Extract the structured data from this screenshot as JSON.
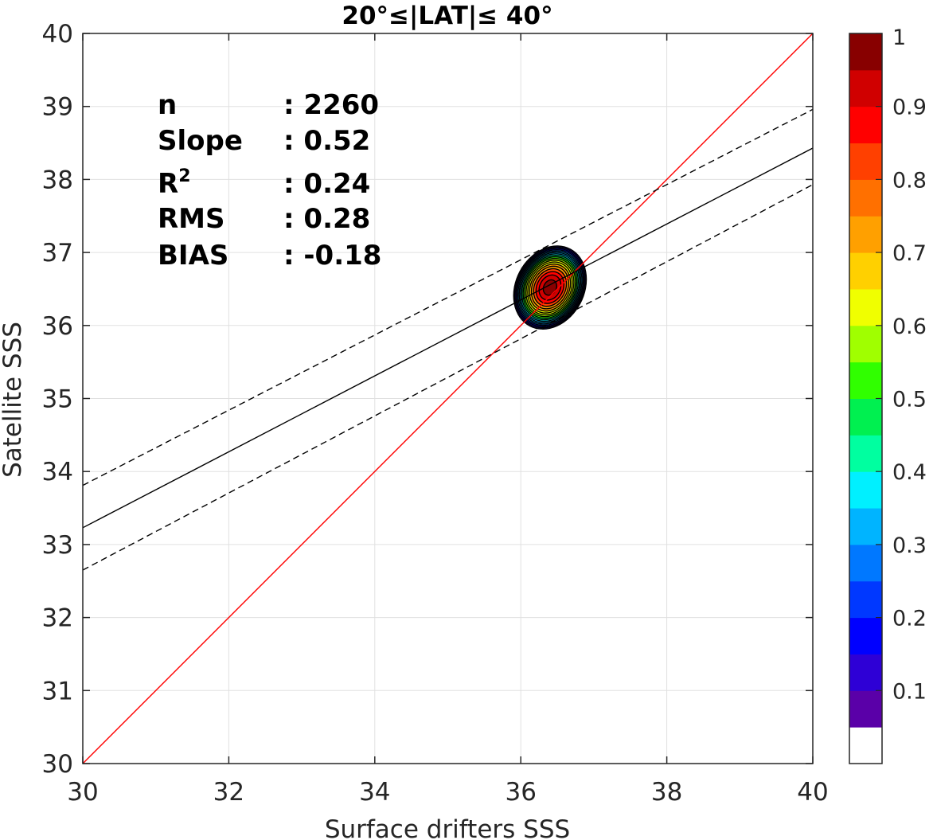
{
  "chart_data": {
    "type": "scatter",
    "title": "20°≤|LAT|≤ 40°",
    "xlabel": "Surface drifters SSS",
    "ylabel": "Satellite SSS",
    "xlim": [
      30,
      40
    ],
    "ylim": [
      30,
      40
    ],
    "xticks": [
      "30",
      "32",
      "34",
      "36",
      "38",
      "40"
    ],
    "yticks": [
      "30",
      "31",
      "32",
      "33",
      "34",
      "35",
      "36",
      "37",
      "38",
      "39",
      "40"
    ],
    "grid": true,
    "stats": [
      {
        "label": "n",
        "value": ": 2260"
      },
      {
        "label": "Slope",
        "value": ": 0.52"
      },
      {
        "label": "R",
        "sup": "2",
        "value": ": 0.24"
      },
      {
        "label": "RMS",
        "value": ": 0.28"
      },
      {
        "label": "BIAS",
        "value": ": -0.18"
      }
    ],
    "lines": [
      {
        "role": "one-to-one",
        "color": "#ff0000",
        "dash": false,
        "x": [
          30,
          40
        ],
        "y": [
          30,
          40
        ]
      },
      {
        "role": "regression",
        "color": "#000000",
        "dash": false,
        "x": [
          30,
          40
        ],
        "y": [
          33.23,
          38.43
        ]
      },
      {
        "role": "regression-plus-rms",
        "color": "#000000",
        "dash": true,
        "x": [
          30,
          40
        ],
        "y": [
          33.81,
          38.96
        ]
      },
      {
        "role": "regression-minus-rms",
        "color": "#000000",
        "dash": true,
        "x": [
          30,
          40
        ],
        "y": [
          32.65,
          37.93
        ]
      }
    ],
    "density": {
      "center": [
        36.4,
        36.52
      ],
      "peak": 0.93,
      "levels": [
        0.05,
        0.1,
        0.15,
        0.2,
        0.25,
        0.3,
        0.35,
        0.4,
        0.45,
        0.5,
        0.55,
        0.6,
        0.65,
        0.7,
        0.75,
        0.8,
        0.85,
        0.9
      ]
    },
    "colorbar": {
      "range": [
        0,
        1
      ],
      "ticks": [
        "0.1",
        "0.2",
        "0.3",
        "0.4",
        "0.5",
        "0.6",
        "0.7",
        "0.8",
        "0.9",
        "1"
      ],
      "colors": [
        "#ffffff",
        "#5a00a8",
        "#2e00d6",
        "#0000ff",
        "#0038ff",
        "#0078ff",
        "#00b4ff",
        "#00f0ff",
        "#00ffa0",
        "#00f050",
        "#30ff00",
        "#a0ff00",
        "#f0ff00",
        "#ffd000",
        "#ffa000",
        "#ff7000",
        "#ff4000",
        "#ff0000",
        "#d00000",
        "#880000"
      ]
    }
  }
}
